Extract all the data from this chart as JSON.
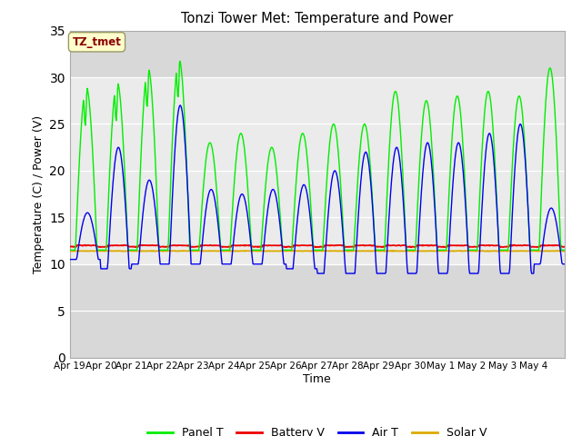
{
  "title": "Tonzi Tower Met: Temperature and Power",
  "xlabel": "Time",
  "ylabel": "Temperature (C) / Power (V)",
  "ylim": [
    0,
    35
  ],
  "yticks": [
    0,
    5,
    10,
    15,
    20,
    25,
    30,
    35
  ],
  "fig_bg": "#ffffff",
  "plot_bg": "#dcdcdc",
  "band_bg": "#e8e8e8",
  "annotation_text": "TZ_tmet",
  "annotation_color": "#8b0000",
  "annotation_bg": "#ffffcc",
  "annotation_edge": "#999966",
  "legend_labels": [
    "Panel T",
    "Battery V",
    "Air T",
    "Solar V"
  ],
  "legend_colors": [
    "#00ee00",
    "#ee0000",
    "#0000ee",
    "#ddaa00"
  ],
  "line_colors": {
    "panel_t": "#00ee00",
    "battery_v": "#ee0000",
    "air_t": "#0000ee",
    "solar_v": "#ddaa00"
  },
  "x_tick_labels": [
    "Apr 19",
    "Apr 20",
    "Apr 21",
    "Apr 22",
    "Apr 23",
    "Apr 24",
    "Apr 25",
    "Apr 26",
    "Apr 27",
    "Apr 28",
    "Apr 29",
    "Apr 30",
    "May 1",
    "May 2",
    "May 3",
    "May 4"
  ],
  "n_days": 16
}
